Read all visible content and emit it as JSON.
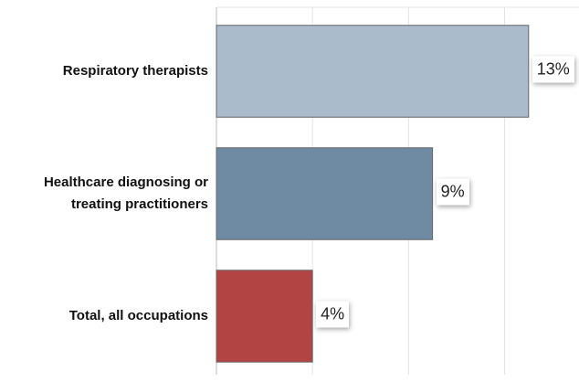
{
  "chart_data": {
    "type": "bar",
    "orientation": "horizontal",
    "categories": [
      "Respiratory therapists",
      "Healthcare diagnosing or treating practitioners",
      "Total, all occupations"
    ],
    "values": [
      13,
      9,
      4
    ],
    "value_labels": [
      "13%",
      "9%",
      "4%"
    ],
    "colors": [
      "#aabccb",
      "#6f8aa3",
      "#b34444"
    ],
    "xlim": [
      0,
      15.1
    ],
    "xticks": [
      0,
      4,
      8,
      12
    ],
    "grid": true
  }
}
